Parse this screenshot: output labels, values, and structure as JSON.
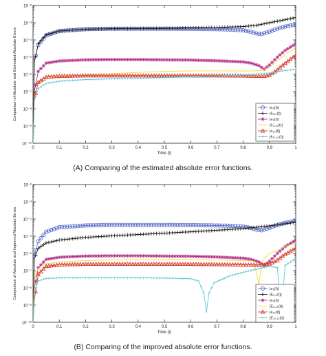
{
  "chart_data": [
    {
      "type": "line",
      "caption": "(A) Comparing of the estimated absolute error functions.",
      "xlabel": "Time (t)",
      "ylabel": "Comparison of Absolute and Estimated Absolute Errors",
      "xlim": [
        0,
        1
      ],
      "ylim": [
        1e-10,
        0.01
      ],
      "yscale": "log",
      "xticks": [
        0,
        0.1,
        0.2,
        0.3,
        0.4,
        0.5,
        0.6,
        0.7,
        0.8,
        0.9,
        1
      ],
      "yticks": [
        1e-10,
        1e-09,
        1e-08,
        1e-07,
        1e-06,
        1e-05,
        0.0001,
        0.001,
        0.01
      ],
      "ytick_labels": [
        "10⁻¹⁰",
        "10⁻⁹",
        "10⁻⁸",
        "10⁻⁷",
        "10⁻⁶",
        "10⁻⁵",
        "10⁻⁴",
        "10⁻³",
        "10⁻²"
      ],
      "legend_position": "bottom-right",
      "series": [
        {
          "name": "|e₈(t)|",
          "color": "#5b6fc9",
          "marker": "circle",
          "x": [
            0,
            0.005,
            0.02,
            0.05,
            0.1,
            0.2,
            0.3,
            0.4,
            0.5,
            0.6,
            0.7,
            0.75,
            0.8,
            0.83,
            0.85,
            0.87,
            0.9,
            0.93,
            0.96,
            1.0
          ],
          "y": [
            1e-10,
            6e-06,
            5e-05,
            0.00018,
            0.00033,
            0.00042,
            0.00045,
            0.00045,
            0.00045,
            0.00044,
            0.00042,
            0.0004,
            0.00036,
            0.0003,
            0.00024,
            0.00022,
            0.0003,
            0.00045,
            0.0006,
            0.0008
          ]
        },
        {
          "name": "|ê₈,₉(t)|",
          "color": "#222222",
          "marker": "plus",
          "x": [
            0,
            0.005,
            0.02,
            0.05,
            0.1,
            0.2,
            0.3,
            0.4,
            0.5,
            0.6,
            0.7,
            0.8,
            0.85,
            0.9,
            0.95,
            1.0
          ],
          "y": [
            1e-10,
            5e-06,
            6e-05,
            0.0002,
            0.00033,
            0.00042,
            0.00045,
            0.00046,
            0.00047,
            0.0005,
            0.00053,
            0.0006,
            0.0007,
            0.001,
            0.0014,
            0.002
          ]
        },
        {
          "name": "|e₉(t)|",
          "color": "#b5338a",
          "marker": "star",
          "x": [
            0,
            0.005,
            0.02,
            0.05,
            0.1,
            0.2,
            0.3,
            0.4,
            0.5,
            0.6,
            0.7,
            0.8,
            0.83,
            0.86,
            0.88,
            0.9,
            0.93,
            0.96,
            1.0
          ],
          "y": [
            1e-10,
            1e-07,
            1.5e-06,
            4.5e-06,
            6e-06,
            7e-06,
            7.2e-06,
            7.2e-06,
            7e-06,
            6.8e-06,
            6.2e-06,
            5.3e-06,
            4.5e-06,
            3.2e-06,
            2e-06,
            3.5e-06,
            1e-05,
            2.5e-05,
            6e-05
          ]
        },
        {
          "name": "|ê₉,₁₀(t)|",
          "color": "#f0dd2a",
          "marker": "none",
          "x": [
            0,
            0.005,
            0.02,
            0.05,
            0.1,
            0.2,
            0.3,
            0.4,
            0.5,
            0.6,
            0.7,
            0.8,
            0.85,
            0.88,
            0.9,
            0.93,
            0.96,
            1.0
          ],
          "y": [
            1e-10,
            5e-08,
            3e-07,
            5.5e-07,
            7e-07,
            9e-07,
            1.1e-06,
            1.3e-06,
            1.5e-06,
            1.6e-06,
            1.6e-06,
            1.6e-06,
            1.6e-06,
            1.8e-06,
            2.5e-06,
            6e-06,
            1.4e-05,
            3.5e-05
          ]
        },
        {
          "name": "|e₁₀(t)|",
          "color": "#d63a2a",
          "marker": "triangle",
          "x": [
            0,
            0.005,
            0.02,
            0.05,
            0.1,
            0.2,
            0.3,
            0.4,
            0.5,
            0.6,
            0.7,
            0.8,
            0.85,
            0.88,
            0.9,
            0.93,
            0.96,
            1.0
          ],
          "y": [
            1e-10,
            4e-08,
            3.5e-07,
            7e-07,
            8e-07,
            8.5e-07,
            8.5e-07,
            8.5e-07,
            8.5e-07,
            8.5e-07,
            8.5e-07,
            8.3e-07,
            8e-07,
            8e-07,
            9e-07,
            1.8e-06,
            4.5e-06,
            1.3e-05
          ]
        },
        {
          "name": "|ê₁₀,₁₁(t)|",
          "color": "#62c7d6",
          "marker": "dot",
          "x": [
            0,
            0.005,
            0.02,
            0.05,
            0.1,
            0.2,
            0.3,
            0.4,
            0.5,
            0.6,
            0.7,
            0.8,
            0.85,
            0.9,
            0.95,
            1.0
          ],
          "y": [
            1e-10,
            3e-08,
            1.5e-07,
            3e-07,
            4e-07,
            5e-07,
            5.5e-07,
            6e-07,
            6.5e-07,
            7e-07,
            8e-07,
            9e-07,
            1e-06,
            1.2e-06,
            1.6e-06,
            2e-06
          ]
        }
      ]
    },
    {
      "type": "line",
      "caption": "(B) Comparing of the improved absolute error functions.",
      "xlabel": "Time (t)",
      "ylabel": "Comparison of Absolute and Improved Absolute Errors",
      "xlim": [
        0,
        1
      ],
      "ylim": [
        1e-10,
        0.01
      ],
      "yscale": "log",
      "xticks": [
        0,
        0.1,
        0.2,
        0.3,
        0.4,
        0.5,
        0.6,
        0.7,
        0.8,
        0.9,
        1
      ],
      "yticks": [
        1e-10,
        1e-09,
        1e-08,
        1e-07,
        1e-06,
        1e-05,
        0.0001,
        0.001,
        0.01
      ],
      "ytick_labels": [
        "10⁻¹⁰",
        "10⁻⁹",
        "10⁻⁸",
        "10⁻⁷",
        "10⁻⁶",
        "10⁻⁵",
        "10⁻⁴",
        "10⁻³",
        "10⁻²"
      ],
      "legend_position": "bottom-right",
      "series": [
        {
          "name": "|e₈(t)|",
          "color": "#5b6fc9",
          "marker": "circle",
          "x": [
            0,
            0.005,
            0.02,
            0.05,
            0.1,
            0.2,
            0.3,
            0.4,
            0.5,
            0.6,
            0.7,
            0.75,
            0.8,
            0.83,
            0.85,
            0.87,
            0.9,
            0.93,
            0.96,
            1.0
          ],
          "y": [
            1e-10,
            8e-07,
            5e-06,
            1.8e-05,
            3.3e-05,
            4.2e-05,
            4.5e-05,
            4.5e-05,
            4.5e-05,
            4.4e-05,
            4.2e-05,
            4e-05,
            3.6e-05,
            3e-05,
            2.4e-05,
            2.2e-05,
            3e-05,
            4.5e-05,
            6e-05,
            8e-05
          ]
        },
        {
          "name": "|E₈,₉(t)|",
          "color": "#222222",
          "marker": "plus",
          "x": [
            0,
            0.005,
            0.02,
            0.05,
            0.1,
            0.2,
            0.3,
            0.4,
            0.5,
            0.6,
            0.7,
            0.8,
            0.85,
            0.9,
            0.95,
            1.0
          ],
          "y": [
            1e-10,
            5e-07,
            2e-06,
            4e-06,
            6e-06,
            8.5e-06,
            1.05e-05,
            1.25e-05,
            1.5e-05,
            1.8e-05,
            2.2e-05,
            2.8e-05,
            3.3e-05,
            4e-05,
            5e-05,
            6.5e-05
          ]
        },
        {
          "name": "|e₉(t)|",
          "color": "#b5338a",
          "marker": "star",
          "x": [
            0,
            0.005,
            0.02,
            0.05,
            0.1,
            0.2,
            0.3,
            0.4,
            0.5,
            0.6,
            0.7,
            0.8,
            0.83,
            0.86,
            0.88,
            0.9,
            0.93,
            0.96,
            1.0
          ],
          "y": [
            1e-10,
            1e-08,
            1.5e-07,
            4.5e-07,
            6e-07,
            7e-07,
            7.2e-07,
            7.2e-07,
            7e-07,
            6.8e-07,
            6.2e-07,
            5.3e-07,
            4.5e-07,
            3.2e-07,
            2e-07,
            3.5e-07,
            1e-06,
            2.5e-06,
            6e-06
          ]
        },
        {
          "name": "|E₉,₁₀(t)|",
          "color": "#f0dd2a",
          "marker": "none",
          "x": [
            0,
            0.005,
            0.02,
            0.05,
            0.1,
            0.2,
            0.3,
            0.4,
            0.5,
            0.6,
            0.7,
            0.8,
            0.84,
            0.86,
            0.87,
            0.88,
            0.9,
            0.93,
            0.96,
            1.0
          ],
          "y": [
            1e-10,
            3e-08,
            1.5e-07,
            2.5e-07,
            3.2e-07,
            3.8e-07,
            4.2e-07,
            4.4e-07,
            4.4e-07,
            4.3e-07,
            4.2e-07,
            3.8e-07,
            3.5e-07,
            1.5e-08,
            2.5e-07,
            5e-07,
            1e-06,
            1.5e-06,
            2.5e-06,
            4e-06
          ]
        },
        {
          "name": "|e₁₀(t)|",
          "color": "#d63a2a",
          "marker": "triangle",
          "x": [
            0,
            0.005,
            0.02,
            0.05,
            0.1,
            0.2,
            0.3,
            0.4,
            0.5,
            0.6,
            0.7,
            0.8,
            0.85,
            0.88,
            0.9,
            0.93,
            0.96,
            1.0
          ],
          "y": [
            1e-10,
            2e-09,
            6e-08,
            1.8e-07,
            2.2e-07,
            2.4e-07,
            2.4e-07,
            2.4e-07,
            2.4e-07,
            2.4e-07,
            2.3e-07,
            2.2e-07,
            2.1e-07,
            2.2e-07,
            2.5e-07,
            4e-07,
            9e-07,
            2e-06
          ]
        },
        {
          "name": "|E₁₀,₁₁(t)|",
          "color": "#62c7d6",
          "marker": "dot",
          "x": [
            0,
            0.005,
            0.02,
            0.05,
            0.1,
            0.2,
            0.3,
            0.4,
            0.5,
            0.6,
            0.63,
            0.65,
            0.66,
            0.67,
            0.69,
            0.75,
            0.8,
            0.85,
            0.9,
            0.93,
            0.945,
            0.96,
            1.0
          ],
          "y": [
            1e-10,
            5e-09,
            2.5e-08,
            3.5e-08,
            3.8e-08,
            3.8e-08,
            3.8e-08,
            3.8e-08,
            3.7e-08,
            3.4e-08,
            2.5e-08,
            5e-09,
            4e-10,
            5e-09,
            2e-08,
            5e-08,
            8e-08,
            1.2e-07,
            1.8e-07,
            1.5e-07,
            5e-10,
            2e-07,
            5e-07
          ]
        }
      ]
    }
  ]
}
